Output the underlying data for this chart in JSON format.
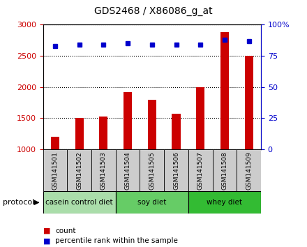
{
  "title": "GDS2468 / X86086_g_at",
  "samples": [
    "GSM141501",
    "GSM141502",
    "GSM141503",
    "GSM141504",
    "GSM141505",
    "GSM141506",
    "GSM141507",
    "GSM141508",
    "GSM141509"
  ],
  "counts": [
    1200,
    1500,
    1530,
    1920,
    1800,
    1570,
    2000,
    2880,
    2500
  ],
  "percentile_ranks": [
    83,
    84,
    84,
    85,
    84,
    84,
    84,
    88,
    87
  ],
  "ylim_left": [
    1000,
    3000
  ],
  "ylim_right": [
    0,
    100
  ],
  "yticks_left": [
    1000,
    1500,
    2000,
    2500,
    3000
  ],
  "ytick_labels_right": [
    "0",
    "25",
    "50",
    "75",
    "100%"
  ],
  "bar_color": "#cc0000",
  "dot_color": "#0000cc",
  "bar_width": 0.35,
  "groups": [
    {
      "label": "casein control diet",
      "start": 0,
      "end": 3,
      "color": "#aaddaa"
    },
    {
      "label": "soy diet",
      "start": 3,
      "end": 6,
      "color": "#66cc66"
    },
    {
      "label": "whey diet",
      "start": 6,
      "end": 9,
      "color": "#33bb33"
    }
  ],
  "tick_label_color_left": "#cc0000",
  "tick_label_color_right": "#0000cc",
  "xtick_bg_color": "#cccccc",
  "plot_bg": "#ffffff",
  "grid_color": "#000000",
  "legend_count_label": "count",
  "legend_pct_label": "percentile rank within the sample"
}
